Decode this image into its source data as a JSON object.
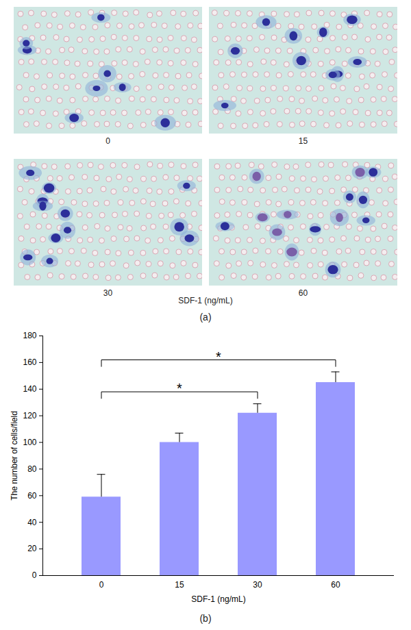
{
  "figure_a": {
    "panel_label": "(a)",
    "images": [
      "0",
      "15",
      "30",
      "60"
    ],
    "axis_label": "SDF-1 (ng/mL)"
  },
  "chart_data": {
    "type": "bar",
    "panel_label": "(b)",
    "categories": [
      "0",
      "15",
      "30",
      "60"
    ],
    "values": [
      59,
      100,
      122,
      145
    ],
    "errors": [
      17,
      7,
      7,
      8
    ],
    "color": "#9999ff",
    "x_label": "SDF-1 (ng/mL)",
    "y_label": "The number of cells/field",
    "ylim": [
      0,
      180
    ],
    "yticks": [
      0,
      20,
      40,
      60,
      80,
      100,
      120,
      140,
      160,
      180
    ],
    "significance": [
      {
        "from": "0",
        "to": "30",
        "label": "*"
      },
      {
        "from": "0",
        "to": "60",
        "label": "*"
      }
    ]
  }
}
